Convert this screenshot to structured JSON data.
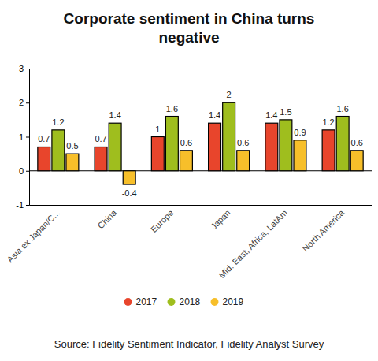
{
  "chart_data": {
    "type": "bar",
    "title": "Corporate sentiment in China turns negative",
    "source": "Source: Fidelity Sentiment Indicator, Fidelity Analyst Survey",
    "categories": [
      "Asia ex Japan/C...",
      "China",
      "Europe",
      "Japan",
      "Mid. East, Africa, LatAm",
      "North America"
    ],
    "series": [
      {
        "name": "2017",
        "color": "#e8452c",
        "values": [
          0.7,
          0.7,
          1,
          1.4,
          1.4,
          1.2
        ]
      },
      {
        "name": "2018",
        "color": "#9fbe1e",
        "values": [
          1.2,
          1.4,
          1.6,
          2,
          1.5,
          1.6
        ]
      },
      {
        "name": "2019",
        "color": "#f7bf2a",
        "values": [
          0.5,
          -0.4,
          0.6,
          0.6,
          0.9,
          0.6
        ]
      }
    ],
    "ylim": [
      -1,
      3
    ],
    "yticks": [
      -1,
      0,
      1,
      2,
      3
    ],
    "grid": false,
    "data_labels": true,
    "legend": "bottom"
  }
}
